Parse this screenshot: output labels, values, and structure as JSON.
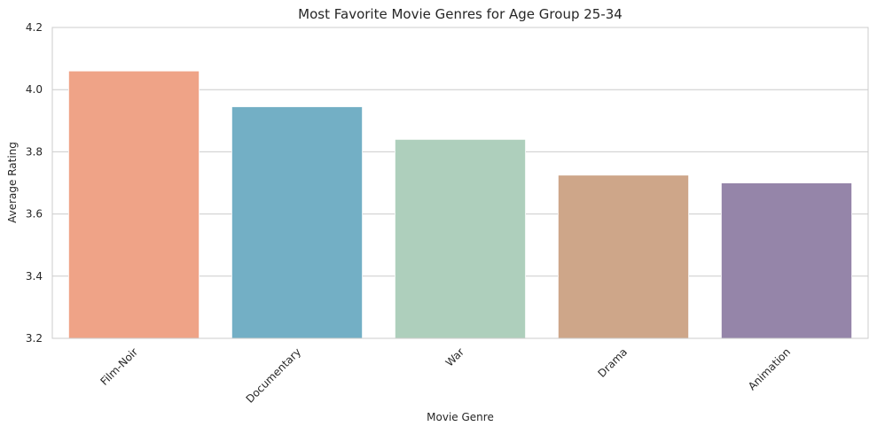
{
  "chart_data": {
    "type": "bar",
    "title": "Most Favorite Movie Genres for Age Group 25-34",
    "xlabel": "Movie Genre",
    "ylabel": "Average Rating",
    "categories": [
      "Film-Noir",
      "Documentary",
      "War",
      "Drama",
      "Animation"
    ],
    "values": [
      4.06,
      3.945,
      3.84,
      3.725,
      3.7
    ],
    "colors": [
      "#EFA387",
      "#73AFC5",
      "#AECFBC",
      "#CEA689",
      "#9585A9"
    ],
    "ylim": [
      3.2,
      4.2
    ],
    "yticks": [
      "3.2",
      "3.4",
      "3.6",
      "3.8",
      "4.0",
      "4.2"
    ],
    "grid": "y-axis",
    "legend": "none"
  }
}
